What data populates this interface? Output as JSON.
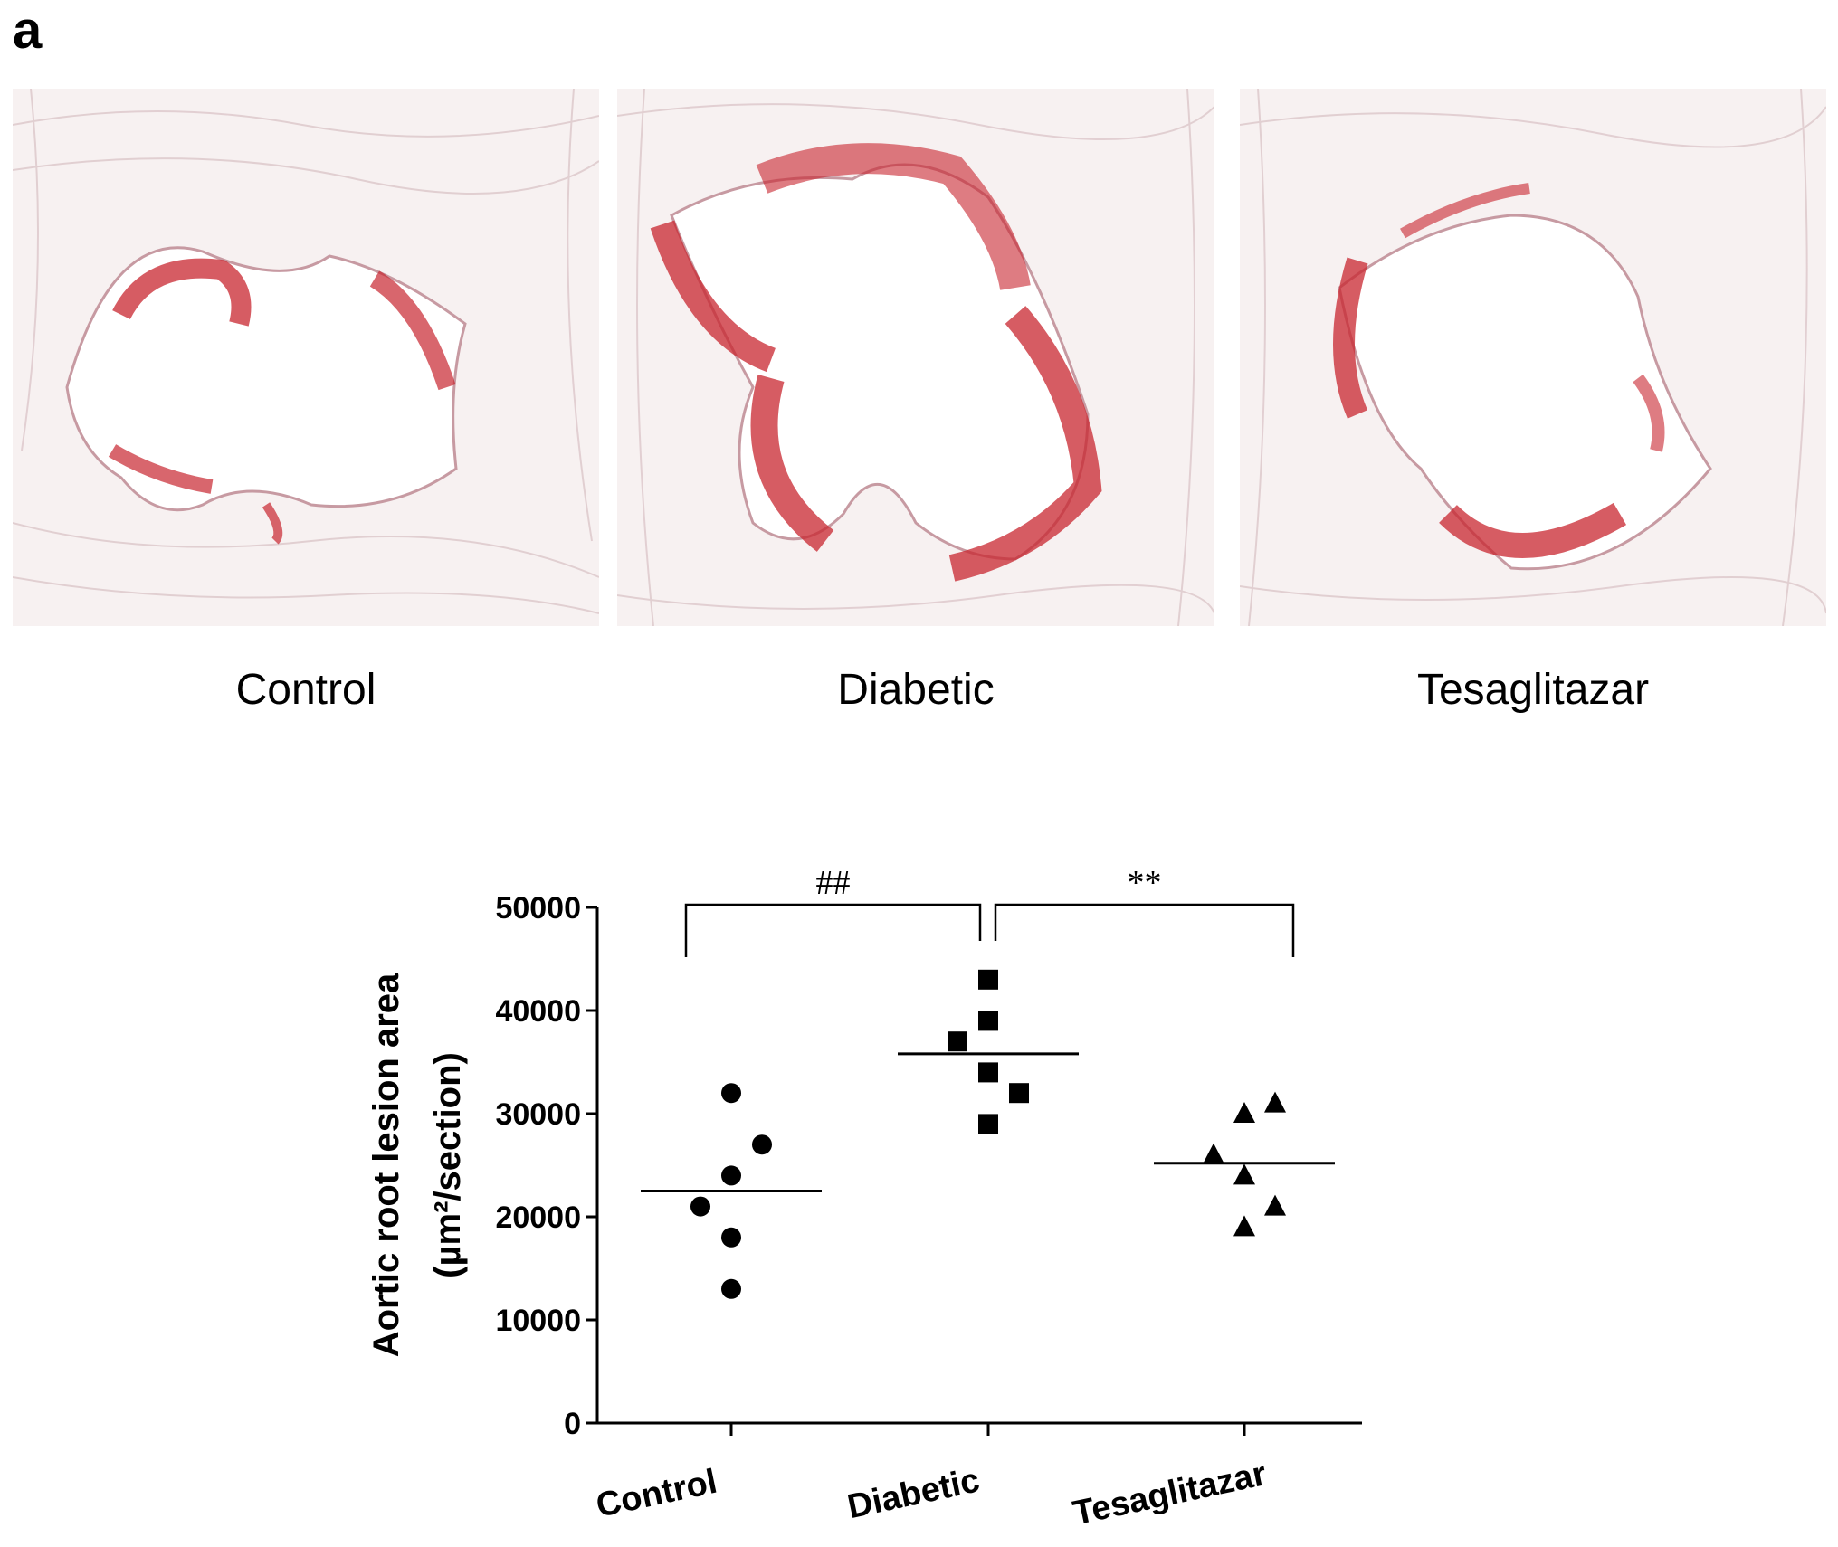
{
  "panel_letter": "a",
  "micrographs": [
    {
      "label": "Control"
    },
    {
      "label": "Diabetic"
    },
    {
      "label": "Tesaglitazar"
    }
  ],
  "colors": {
    "tissue_background": "#f7f1f1",
    "tissue_fiber": "#d9c3c6",
    "lumen": "#ffffff",
    "lesion_stain": "#c8252f"
  },
  "chart_data": {
    "type": "scatter",
    "categories": [
      "Control",
      "Diabetic",
      "Tesaglitazar"
    ],
    "ylabel_line1": "Aortic root lesion area",
    "ylabel_line2": "(µm²/section)",
    "ylim": [
      0,
      50000
    ],
    "yticks": [
      "0",
      "10000",
      "20000",
      "30000",
      "40000",
      "50000"
    ],
    "grid": false,
    "series": [
      {
        "category": "Control",
        "marker": "circle",
        "points": [
          {
            "offset": 0,
            "value": 32000
          },
          {
            "offset": 0.12,
            "value": 27000
          },
          {
            "offset": 0,
            "value": 24000
          },
          {
            "offset": -0.12,
            "value": 21000
          },
          {
            "offset": 0,
            "value": 18000
          },
          {
            "offset": 0,
            "value": 13000
          }
        ],
        "mean": 22500
      },
      {
        "category": "Diabetic",
        "marker": "square",
        "points": [
          {
            "offset": 0,
            "value": 43000
          },
          {
            "offset": 0,
            "value": 39000
          },
          {
            "offset": -0.12,
            "value": 37000
          },
          {
            "offset": 0,
            "value": 34000
          },
          {
            "offset": 0.12,
            "value": 32000
          },
          {
            "offset": 0,
            "value": 29000
          }
        ],
        "mean": 35800
      },
      {
        "category": "Tesaglitazar",
        "marker": "triangle",
        "points": [
          {
            "offset": 0.12,
            "value": 31000
          },
          {
            "offset": 0,
            "value": 30000
          },
          {
            "offset": -0.12,
            "value": 26000
          },
          {
            "offset": 0,
            "value": 24000
          },
          {
            "offset": 0.12,
            "value": 21000
          },
          {
            "offset": 0,
            "value": 19000
          }
        ],
        "mean": 25200
      }
    ],
    "annotations": [
      {
        "from": "Control",
        "to": "Diabetic",
        "label": "##"
      },
      {
        "from": "Diabetic",
        "to": "Tesaglitazar",
        "label": "**"
      }
    ]
  }
}
